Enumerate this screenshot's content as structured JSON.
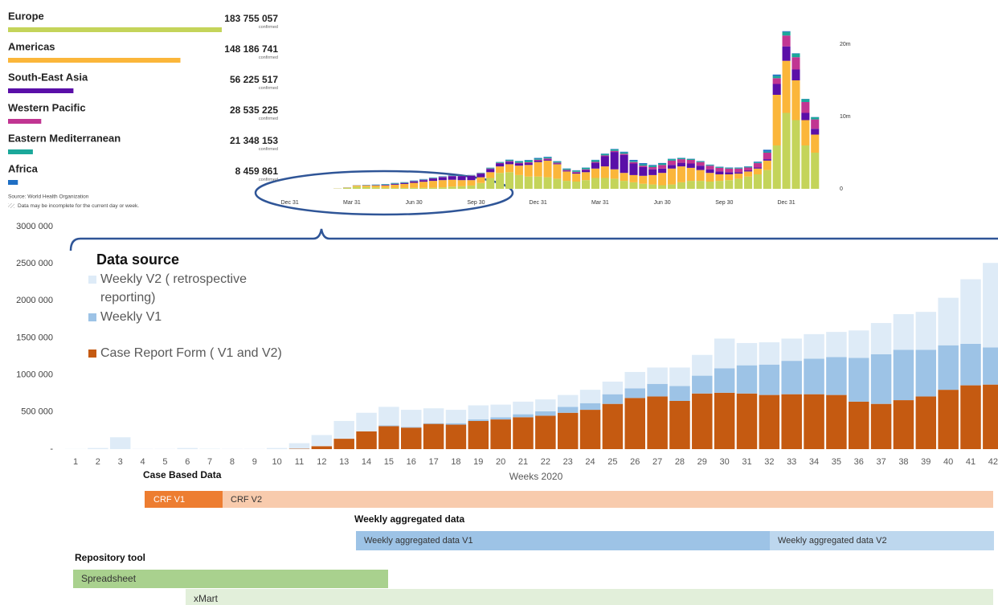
{
  "chart_data": [
    {
      "type": "bar",
      "stacked": true,
      "count_label": "confirmed",
      "source": "Source: World Health Organization",
      "note": "Data may be incomplete for the current day or week.",
      "x": [
        4,
        6,
        8,
        10,
        12,
        14,
        16,
        18,
        20,
        22,
        24,
        26,
        28,
        30,
        32,
        34,
        36,
        38,
        40,
        42,
        44,
        46,
        48,
        50,
        52,
        54,
        56,
        58,
        60,
        62,
        64,
        66,
        68,
        70,
        72,
        74,
        76,
        78,
        80,
        82,
        84,
        86,
        88,
        90,
        92,
        94,
        96,
        98,
        100,
        102,
        104,
        106,
        108,
        110
      ],
      "xlim": [
        -5,
        114
      ],
      "xticks": [
        {
          "value": 0,
          "label": "Dec 31"
        },
        {
          "value": 13,
          "label": "Mar 31"
        },
        {
          "value": 26,
          "label": "Jun 30"
        },
        {
          "value": 39,
          "label": "Sep 30"
        },
        {
          "value": 52,
          "label": "Dec 31"
        },
        {
          "value": 65,
          "label": "Mar 31"
        },
        {
          "value": 78,
          "label": "Jun 30"
        },
        {
          "value": 91,
          "label": "Sep 30"
        },
        {
          "value": 104,
          "label": "Dec 31"
        }
      ],
      "ylim": [
        0,
        23.5
      ],
      "yticks": [
        0,
        {
          "value": 10,
          "label": "10m"
        },
        {
          "value": 20,
          "label": "20m"
        }
      ],
      "series": [
        {
          "name": "Europe",
          "color": "#c4d45a",
          "total": 183755057,
          "total_label": "183 755 057",
          "values": [
            0,
            0,
            0,
            0.04,
            0.15,
            0.3,
            0.25,
            0.2,
            0.15,
            0.12,
            0.12,
            0.13,
            0.13,
            0.15,
            0.2,
            0.3,
            0.35,
            0.45,
            0.8,
            1.5,
            2.2,
            2.3,
            1.9,
            1.7,
            1.7,
            1.6,
            1.4,
            1.1,
            1.0,
            1.2,
            1.5,
            1.5,
            1.4,
            1.1,
            0.9,
            0.7,
            0.6,
            0.5,
            0.6,
            0.9,
            1.1,
            1.1,
            1.0,
            1.1,
            1.2,
            1.4,
            1.7,
            2.0,
            2.6,
            6.0,
            10.5,
            9.5,
            6.0,
            5.0
          ]
        },
        {
          "name": "Americas",
          "color": "#fbb63a",
          "total": 148186741,
          "total_label": "148 186 741",
          "values": [
            0,
            0,
            0,
            0.005,
            0.02,
            0.15,
            0.2,
            0.25,
            0.3,
            0.45,
            0.55,
            0.7,
            0.85,
            0.95,
            1.0,
            0.95,
            0.85,
            0.75,
            0.8,
            0.8,
            0.9,
            1.1,
            1.3,
            1.6,
            2.0,
            2.3,
            2.0,
            1.3,
            1.1,
            1.1,
            1.3,
            1.6,
            1.3,
            1.1,
            1.0,
            1.1,
            1.3,
            1.7,
            2.2,
            2.2,
            1.8,
            1.5,
            1.2,
            0.9,
            0.8,
            0.7,
            0.7,
            0.8,
            1.3,
            7.0,
            7.2,
            5.5,
            3.5,
            2.5
          ]
        },
        {
          "name": "South-East Asia",
          "color": "#5a0fa8",
          "total": 56225517,
          "total_label": "56 225 517",
          "values": [
            0,
            0,
            0,
            0,
            0,
            0.01,
            0.02,
            0.04,
            0.07,
            0.1,
            0.12,
            0.18,
            0.22,
            0.3,
            0.4,
            0.5,
            0.55,
            0.6,
            0.5,
            0.45,
            0.4,
            0.35,
            0.3,
            0.25,
            0.2,
            0.15,
            0.12,
            0.12,
            0.15,
            0.3,
            0.8,
            1.4,
            2.4,
            2.5,
            1.6,
            1.2,
            0.8,
            0.6,
            0.5,
            0.5,
            0.6,
            0.6,
            0.5,
            0.4,
            0.3,
            0.2,
            0.15,
            0.15,
            0.2,
            1.5,
            2.0,
            1.5,
            1.0,
            0.8
          ]
        },
        {
          "name": "Western Pacific",
          "color": "#c13592",
          "total": 28535225,
          "total_label": "28 535 225",
          "values": [
            0,
            0,
            0,
            0.005,
            0.02,
            0.02,
            0.02,
            0.03,
            0.03,
            0.03,
            0.03,
            0.04,
            0.05,
            0.05,
            0.05,
            0.05,
            0.05,
            0.05,
            0.05,
            0.06,
            0.08,
            0.1,
            0.1,
            0.12,
            0.12,
            0.15,
            0.1,
            0.1,
            0.1,
            0.1,
            0.12,
            0.12,
            0.15,
            0.15,
            0.2,
            0.2,
            0.3,
            0.5,
            0.6,
            0.5,
            0.5,
            0.5,
            0.5,
            0.5,
            0.5,
            0.5,
            0.4,
            0.6,
            0.9,
            0.8,
            1.5,
            1.7,
            1.5,
            1.3
          ]
        },
        {
          "name": "Eastern Mediterranean",
          "color": "#1ba89a",
          "total": 21348153,
          "total_label": "21 348 153",
          "values": [
            0,
            0,
            0,
            0,
            0.01,
            0.02,
            0.04,
            0.06,
            0.08,
            0.08,
            0.07,
            0.05,
            0.05,
            0.05,
            0.05,
            0.05,
            0.05,
            0.05,
            0.06,
            0.1,
            0.12,
            0.15,
            0.2,
            0.25,
            0.15,
            0.15,
            0.15,
            0.15,
            0.18,
            0.2,
            0.25,
            0.2,
            0.2,
            0.18,
            0.15,
            0.2,
            0.2,
            0.2,
            0.2,
            0.15,
            0.12,
            0.1,
            0.1,
            0.1,
            0.1,
            0.1,
            0.1,
            0.1,
            0.15,
            0.3,
            0.5,
            0.5,
            0.4,
            0.3
          ]
        },
        {
          "name": "Africa",
          "color": "#1f6fc4",
          "total": 8459861,
          "total_label": "8 459 861",
          "values": [
            0,
            0,
            0,
            0,
            0,
            0,
            0.01,
            0.01,
            0.02,
            0.03,
            0.03,
            0.05,
            0.05,
            0.05,
            0.04,
            0.03,
            0.02,
            0.02,
            0.02,
            0.02,
            0.02,
            0.03,
            0.05,
            0.08,
            0.1,
            0.08,
            0.05,
            0.04,
            0.04,
            0.04,
            0.04,
            0.05,
            0.06,
            0.1,
            0.15,
            0.15,
            0.1,
            0.07,
            0.05,
            0.04,
            0.04,
            0.05,
            0.05,
            0.05,
            0.05,
            0.05,
            0.05,
            0.1,
            0.25,
            0.2,
            0.1,
            0.05,
            0.04,
            0.03
          ]
        }
      ]
    },
    {
      "type": "bar",
      "stacked": true,
      "legend_title": "Data source",
      "x_label": "Weeks 2020",
      "categories": [
        "1",
        "2",
        "3",
        "4",
        "5",
        "6",
        "7",
        "8",
        "9",
        "10",
        "11",
        "12",
        "13",
        "14",
        "15",
        "16",
        "17",
        "18",
        "19",
        "20",
        "21",
        "22",
        "23",
        "24",
        "25",
        "26",
        "27",
        "28",
        "29",
        "30",
        "31",
        "32",
        "33",
        "34",
        "35",
        "36",
        "37",
        "38",
        "39",
        "40",
        "41",
        "42"
      ],
      "ylim": [
        0,
        3000000
      ],
      "yticks": [
        {
          "value": 0,
          "label": "-"
        },
        {
          "value": 500000,
          "label": "500 000"
        },
        {
          "value": 1000000,
          "label": "1000 000"
        },
        {
          "value": 1500000,
          "label": "1500 000"
        },
        {
          "value": 2000000,
          "label": "2000 000"
        },
        {
          "value": 2500000,
          "label": "2500 000"
        },
        {
          "value": 3000000,
          "label": "3000 000"
        }
      ],
      "series": [
        {
          "name": "Case Report Form ( V1 and V2)",
          "color": "#c55a11",
          "values": [
            0,
            0,
            0,
            0,
            0,
            0,
            0,
            0,
            0,
            0,
            5000,
            40000,
            140000,
            240000,
            310000,
            290000,
            340000,
            330000,
            380000,
            400000,
            430000,
            450000,
            490000,
            530000,
            610000,
            690000,
            710000,
            650000,
            750000,
            760000,
            750000,
            730000,
            740000,
            740000,
            730000,
            640000,
            610000,
            660000,
            710000,
            800000,
            860000,
            870000
          ]
        },
        {
          "name": "Weekly V1",
          "color": "#9dc3e6",
          "values": [
            0,
            0,
            0,
            0,
            0,
            0,
            0,
            0,
            0,
            0,
            0,
            0,
            0,
            0,
            10000,
            10000,
            10000,
            20000,
            20000,
            30000,
            40000,
            60000,
            80000,
            90000,
            130000,
            130000,
            170000,
            200000,
            240000,
            330000,
            380000,
            410000,
            450000,
            480000,
            510000,
            590000,
            670000,
            680000,
            630000,
            600000,
            560000,
            500000
          ]
        },
        {
          "name": "Weekly V2 ( retrospective reporting)",
          "color": "#deebf7",
          "values": [
            2000,
            15000,
            160000,
            3000,
            3000,
            15000,
            5000,
            3000,
            3000,
            15000,
            75000,
            150000,
            240000,
            250000,
            250000,
            230000,
            200000,
            180000,
            190000,
            170000,
            170000,
            160000,
            160000,
            180000,
            170000,
            220000,
            220000,
            250000,
            280000,
            400000,
            300000,
            300000,
            300000,
            330000,
            340000,
            370000,
            420000,
            480000,
            510000,
            640000,
            870000,
            1140000
          ]
        }
      ]
    }
  ],
  "timeline": {
    "sections": [
      {
        "title": "Case Based Data",
        "bars": [
          "CRF V1",
          "CRF V2"
        ]
      },
      {
        "title": "Weekly aggregated data",
        "bars": [
          "Weekly aggregated data V1",
          "Weekly aggregated data V2"
        ]
      },
      {
        "title": "Repository tool",
        "bars": [
          "Spreadsheet",
          "xMart"
        ]
      }
    ]
  }
}
